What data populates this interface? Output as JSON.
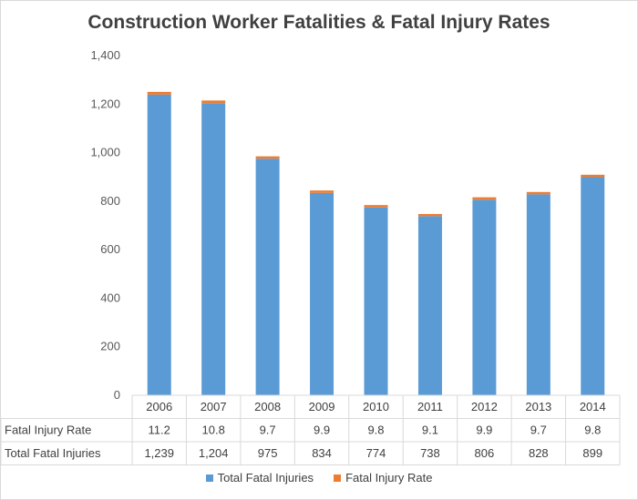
{
  "chart_data": {
    "type": "bar",
    "stacked": true,
    "title": "Construction Worker Fatalities & Fatal Injury Rates",
    "categories": [
      "2006",
      "2007",
      "2008",
      "2009",
      "2010",
      "2011",
      "2012",
      "2013",
      "2014"
    ],
    "series": [
      {
        "name": "Total Fatal Injuries",
        "color": "#5b9bd5",
        "values": [
          1239,
          1204,
          975,
          834,
          774,
          738,
          806,
          828,
          899
        ],
        "display": [
          "1,239",
          "1,204",
          "975",
          "834",
          "774",
          "738",
          "806",
          "828",
          "899"
        ]
      },
      {
        "name": "Fatal Injury Rate",
        "color": "#ed7d31",
        "values": [
          11.2,
          10.8,
          9.7,
          9.9,
          9.8,
          9.1,
          9.9,
          9.7,
          9.8
        ],
        "display": [
          "11.2",
          "10.8",
          "9.7",
          "9.9",
          "9.8",
          "9.1",
          "9.9",
          "9.7",
          "9.8"
        ]
      }
    ],
    "ylim": [
      0,
      1400
    ],
    "yticks": [
      "0",
      "200",
      "400",
      "600",
      "800",
      "1,000",
      "1,200",
      "1,400"
    ],
    "ytick_values": [
      0,
      200,
      400,
      600,
      800,
      1000,
      1200,
      1400
    ],
    "data_table_rows": [
      "Fatal Injury Rate",
      "Total Fatal Injuries"
    ],
    "legend_position": "bottom",
    "grid": false
  }
}
